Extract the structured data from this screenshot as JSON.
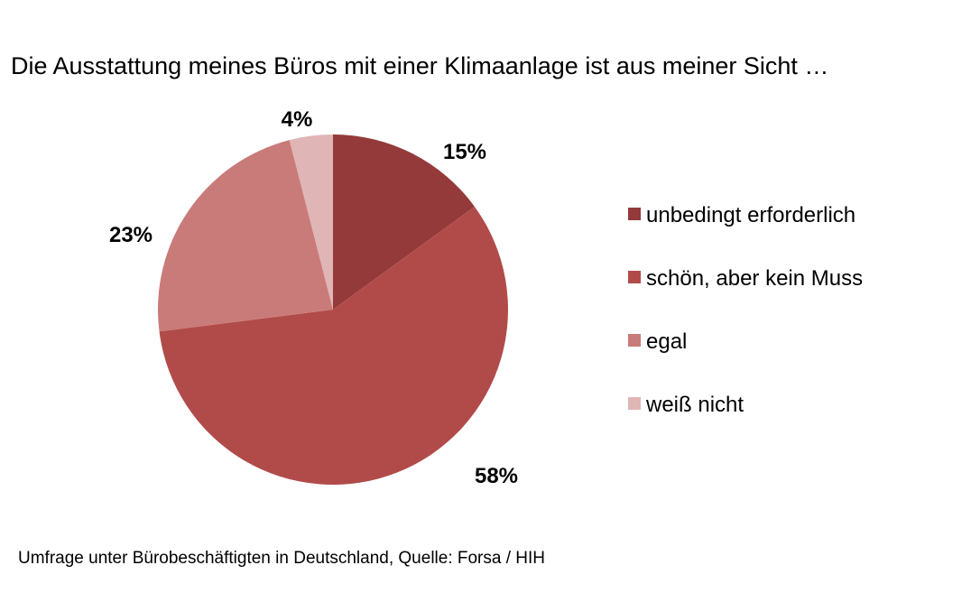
{
  "chart_data": {
    "type": "pie",
    "title": "Die Ausstattung meines Büros mit einer Klimaanlage ist aus meiner Sicht …",
    "categories": [
      "unbedingt erforderlich",
      "schön, aber kein Muss",
      "egal",
      "weiß nicht"
    ],
    "values": [
      15,
      58,
      23,
      4
    ],
    "value_labels": [
      "15%",
      "58%",
      "23%",
      "4%"
    ],
    "colors": [
      "#953a3a",
      "#b14b4a",
      "#c97b79",
      "#e0b5b5"
    ],
    "legend_position": "right",
    "start_angle_deg": 0,
    "direction": "clockwise"
  },
  "footer": {
    "source": "Umfrage unter Bürobeschäftigten in Deutschland, Quelle: Forsa / HIH"
  }
}
